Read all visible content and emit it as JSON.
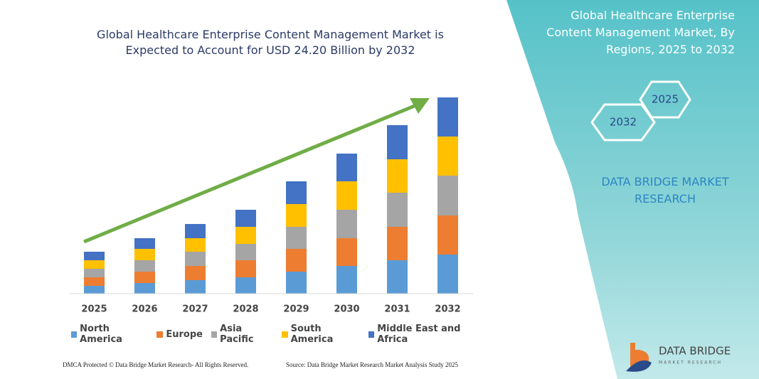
{
  "chart_data": {
    "type": "stacked-bar",
    "title": "Global Healthcare Enterprise Content Management Market is Expected to Account for USD 24.20 Billion by 2032",
    "categories": [
      "2025",
      "2026",
      "2027",
      "2028",
      "2029",
      "2030",
      "2031",
      "2032"
    ],
    "series": [
      {
        "name": "North America",
        "color": "#5b9bd5",
        "values": [
          11,
          15,
          19,
          23,
          31,
          39,
          47,
          55
        ]
      },
      {
        "name": "Europe",
        "color": "#ed7d31",
        "values": [
          12,
          16,
          20,
          24,
          32,
          39,
          47,
          55
        ]
      },
      {
        "name": "Asia Pacific",
        "color": "#a5a5a5",
        "values": [
          12,
          16,
          20,
          23,
          31,
          40,
          48,
          56
        ]
      },
      {
        "name": "South America",
        "color": "#ffc000",
        "values": [
          12,
          16,
          19,
          24,
          32,
          40,
          47,
          55
        ]
      },
      {
        "name": "Middle East and Africa",
        "color": "#4472c4",
        "values": [
          12,
          15,
          20,
          24,
          32,
          39,
          48,
          55
        ]
      }
    ],
    "ylim": [
      0,
      276
    ]
  },
  "side_panel": {
    "title": "Global Healthcare Enterprise Content Management Market, By Regions, 2025 to 2032",
    "hexagons": [
      "2025",
      "2032"
    ],
    "brand": "DATA BRIDGE MARKET RESEARCH"
  },
  "logo": {
    "name": "DATA BRIDGE",
    "tagline": "MARKET RESEARCH"
  },
  "footer": {
    "left": "DMCA Protected © Data Bridge Market Research- All Rights Reserved.",
    "right": "Source: Data Bridge Market Research Market Analysis Study 2025"
  }
}
